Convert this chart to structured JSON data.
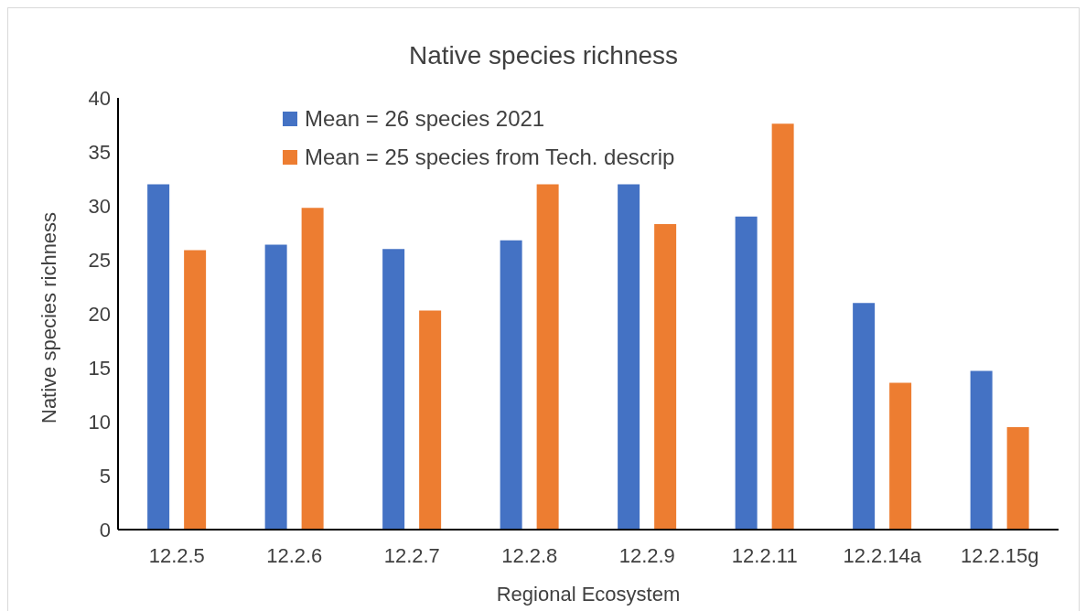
{
  "chart_data": {
    "type": "bar",
    "title": "Native species richness",
    "xlabel": "Regional Ecosystem",
    "ylabel": "Native species richness",
    "categories": [
      "12.2.5",
      "12.2.6",
      "12.2.7",
      "12.2.8",
      "12.2.9",
      "12.2.11",
      "12.2.14a",
      "12.2.15g"
    ],
    "series": [
      {
        "name": "Mean = 26 species 2021",
        "color": "#4472c4",
        "values": [
          32,
          26.4,
          26,
          26.8,
          32,
          29,
          21,
          14.7
        ]
      },
      {
        "name": "Mean = 25 species from Tech. descrip",
        "color": "#ed7d31",
        "values": [
          25.9,
          29.8,
          20.3,
          32,
          28.3,
          37.6,
          13.6,
          9.5
        ]
      }
    ],
    "ylim": [
      0,
      40
    ],
    "yticks": [
      0,
      5,
      10,
      15,
      20,
      25,
      30,
      35,
      40
    ],
    "grid": false,
    "legend": "top left"
  }
}
